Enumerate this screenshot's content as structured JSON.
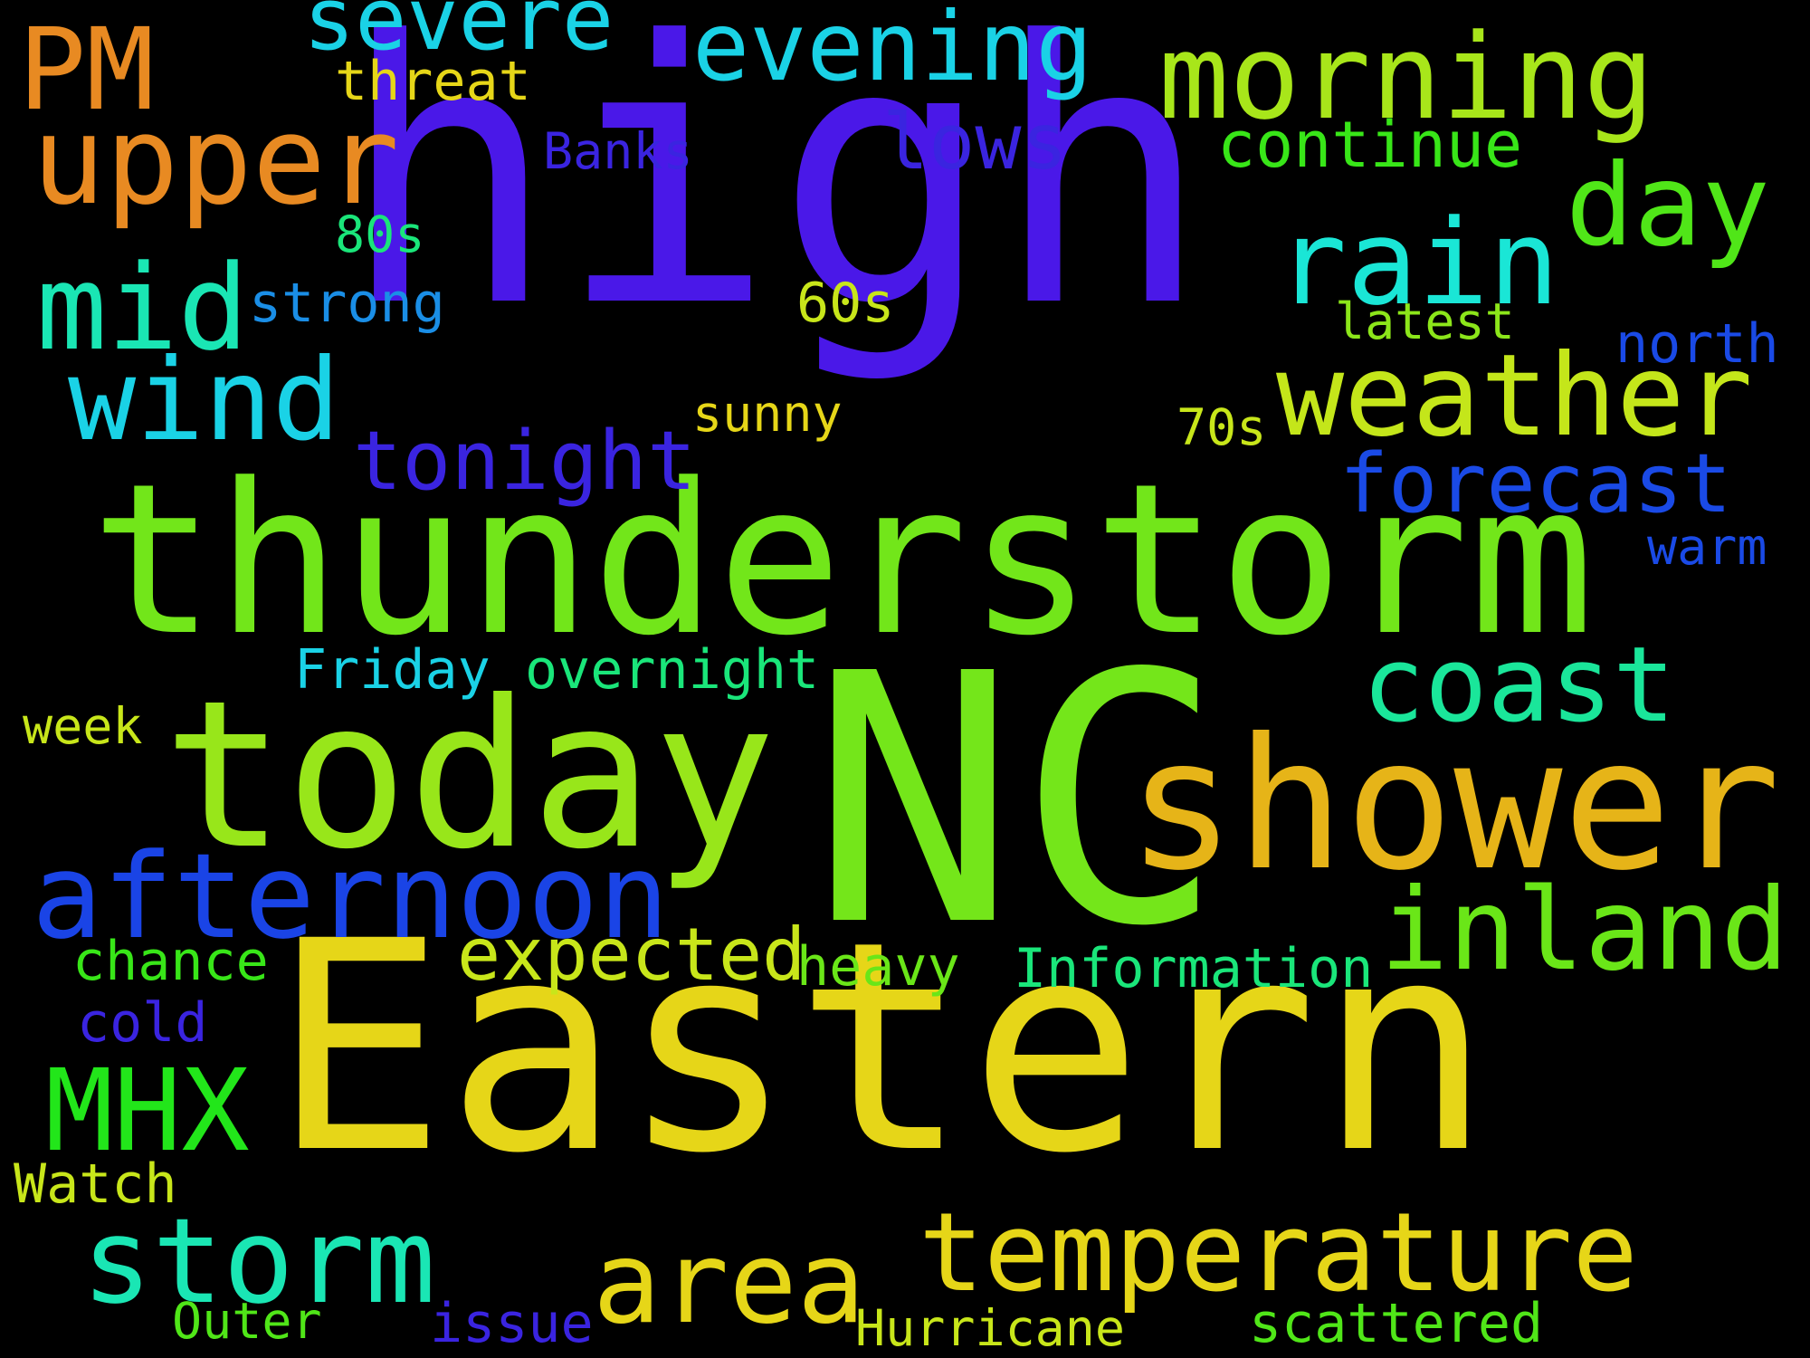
{
  "background_color": "#000000",
  "words": [
    {
      "id": "high",
      "text": "high",
      "color": "#4a18e8"
    },
    {
      "id": "nc",
      "text": "NC",
      "color": "#74e61a"
    },
    {
      "id": "eastern",
      "text": "Eastern",
      "color": "#e6d618"
    },
    {
      "id": "thunderstorm",
      "text": "thunderstorm",
      "color": "#72e61a"
    },
    {
      "id": "today",
      "text": "today",
      "color": "#98e61a"
    },
    {
      "id": "shower",
      "text": "shower",
      "color": "#e6b418"
    },
    {
      "id": "morning",
      "text": "morning",
      "color": "#a8e61a"
    },
    {
      "id": "upper",
      "text": "upper",
      "color": "#e88a22"
    },
    {
      "id": "pm",
      "text": "PM",
      "color": "#e88a22"
    },
    {
      "id": "severe",
      "text": "severe",
      "color": "#1ad2e6"
    },
    {
      "id": "evening",
      "text": "evening",
      "color": "#1ad2e6"
    },
    {
      "id": "threat",
      "text": "threat",
      "color": "#e6d618"
    },
    {
      "id": "banks",
      "text": "Banks",
      "color": "#3a24e0"
    },
    {
      "id": "lows",
      "text": "lows",
      "color": "#3a24e0"
    },
    {
      "id": "continue",
      "text": "continue",
      "color": "#38e618"
    },
    {
      "id": "day",
      "text": "day",
      "color": "#50e618"
    },
    {
      "id": "rain",
      "text": "rain",
      "color": "#1ae6d6"
    },
    {
      "id": "mid",
      "text": "mid",
      "color": "#1ae6b4"
    },
    {
      "id": "80s",
      "text": "80s",
      "color": "#1ae67a"
    },
    {
      "id": "strong",
      "text": "strong",
      "color": "#1a8ee6"
    },
    {
      "id": "60s",
      "text": "60s",
      "color": "#c8e61a"
    },
    {
      "id": "latest",
      "text": "latest",
      "color": "#8ce61a"
    },
    {
      "id": "north",
      "text": "north",
      "color": "#1a4ae6"
    },
    {
      "id": "wind",
      "text": "wind",
      "color": "#1ad2e6"
    },
    {
      "id": "weather",
      "text": "weather",
      "color": "#c4e61a"
    },
    {
      "id": "sunny",
      "text": "sunny",
      "color": "#e6d618"
    },
    {
      "id": "70s",
      "text": "70s",
      "color": "#c8e61a"
    },
    {
      "id": "tonight",
      "text": "tonight",
      "color": "#3a24e0"
    },
    {
      "id": "forecast",
      "text": "forecast",
      "color": "#1a4ae6"
    },
    {
      "id": "warm",
      "text": "warm",
      "color": "#1a4ae6"
    },
    {
      "id": "coast",
      "text": "coast",
      "color": "#1ae69a"
    },
    {
      "id": "friday",
      "text": "Friday",
      "color": "#1ad2e6"
    },
    {
      "id": "overnight",
      "text": "overnight",
      "color": "#1ae67a"
    },
    {
      "id": "week",
      "text": "week",
      "color": "#c8e61a"
    },
    {
      "id": "afternoon",
      "text": "afternoon",
      "color": "#1a44e6"
    },
    {
      "id": "inland",
      "text": "inland",
      "color": "#6ae618"
    },
    {
      "id": "chance",
      "text": "chance",
      "color": "#38e618"
    },
    {
      "id": "expected",
      "text": "expected",
      "color": "#c8e61a"
    },
    {
      "id": "heavy",
      "text": "heavy",
      "color": "#6ae618"
    },
    {
      "id": "information",
      "text": "Information",
      "color": "#1ae67a"
    },
    {
      "id": "cold",
      "text": "cold",
      "color": "#3a24e0"
    },
    {
      "id": "mhx",
      "text": "MHX",
      "color": "#22e61a"
    },
    {
      "id": "watch",
      "text": "Watch",
      "color": "#c8e61a"
    },
    {
      "id": "storm",
      "text": "storm",
      "color": "#1ae6b4"
    },
    {
      "id": "area",
      "text": "area",
      "color": "#e6d618"
    },
    {
      "id": "temperature",
      "text": "temperature",
      "color": "#e6d618"
    },
    {
      "id": "outer",
      "text": "Outer",
      "color": "#50e618"
    },
    {
      "id": "issue",
      "text": "issue",
      "color": "#3a24e0"
    },
    {
      "id": "hurricane",
      "text": "Hurricane",
      "color": "#c8e61a"
    },
    {
      "id": "scattered",
      "text": "scattered",
      "color": "#50e618"
    }
  ]
}
